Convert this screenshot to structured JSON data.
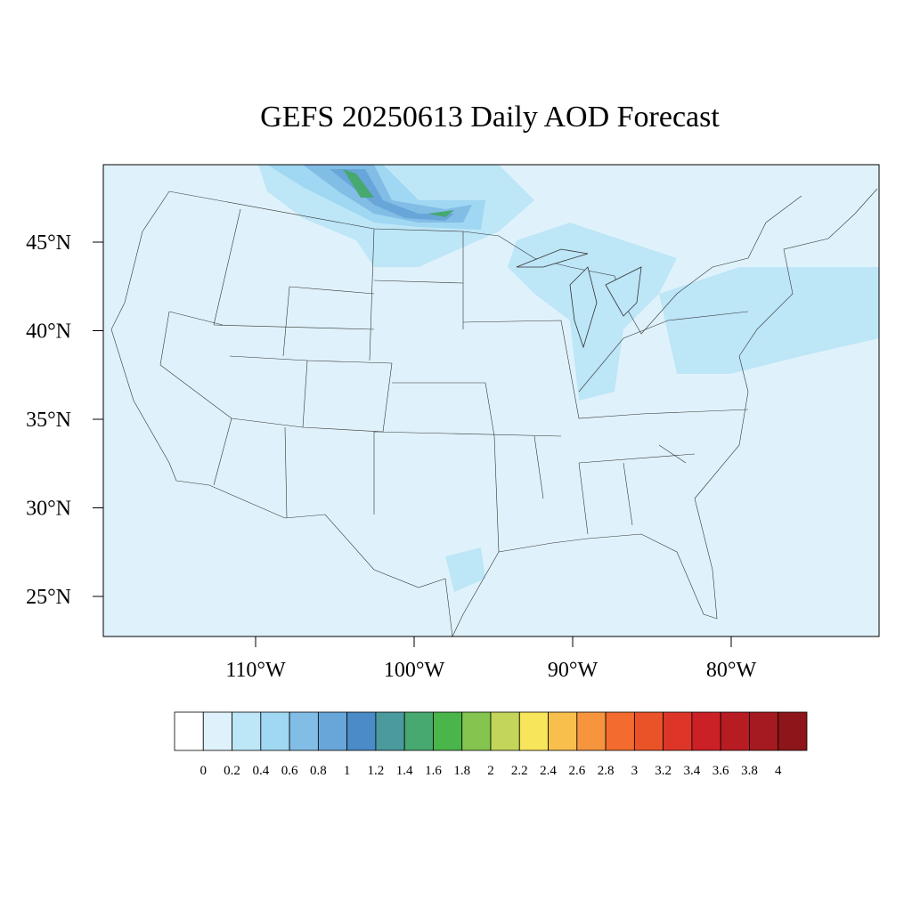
{
  "chart_data": {
    "type": "contour_map",
    "title": "GEFS 20250613 Daily AOD Forecast",
    "xticks": [
      {
        "value": -110,
        "label": "110°W"
      },
      {
        "value": -100,
        "label": "100°W"
      },
      {
        "value": -90,
        "label": "90°W"
      },
      {
        "value": -80,
        "label": "80°W"
      }
    ],
    "yticks": [
      {
        "value": 25,
        "label": "25°N"
      },
      {
        "value": 30,
        "label": "30°N"
      },
      {
        "value": 35,
        "label": "35°N"
      },
      {
        "value": 40,
        "label": "40°N"
      },
      {
        "value": 45,
        "label": "45°N"
      }
    ],
    "colorbar": {
      "levels": [
        0,
        0.2,
        0.4,
        0.6,
        0.8,
        1,
        1.2,
        1.4,
        1.6,
        1.8,
        2,
        2.2,
        2.4,
        2.6,
        2.8,
        3,
        3.2,
        3.4,
        3.6,
        3.8,
        4
      ],
      "colors": [
        "#ffffff",
        "#dff2fb",
        "#bde6f7",
        "#a0d7f2",
        "#82bde6",
        "#68a6da",
        "#4a8bc8",
        "#4a9a9e",
        "#47a870",
        "#4ab54a",
        "#84c44f",
        "#c3d65a",
        "#f7e55b",
        "#f8bf4c",
        "#f7953f",
        "#f36b2f",
        "#ea5228",
        "#dd3628",
        "#cc2027",
        "#b71c23",
        "#a51a20",
        "#8e1519"
      ]
    }
  }
}
